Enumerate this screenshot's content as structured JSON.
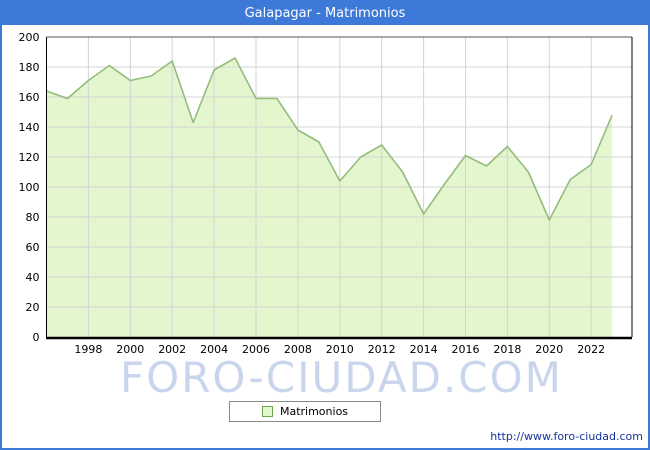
{
  "window": {
    "title": "Galapagar - Matrimonios"
  },
  "chart_data": {
    "type": "area",
    "title": "Galapagar - Matrimonios",
    "series_name": "Matrimonios",
    "x": [
      1996,
      1997,
      1998,
      1999,
      2000,
      2001,
      2002,
      2003,
      2004,
      2005,
      2006,
      2007,
      2008,
      2009,
      2010,
      2011,
      2012,
      2013,
      2014,
      2015,
      2016,
      2017,
      2018,
      2019,
      2020,
      2021,
      2022,
      2023
    ],
    "values": [
      164,
      159,
      171,
      181,
      171,
      174,
      184,
      143,
      178,
      186,
      159,
      159,
      138,
      130,
      104,
      120,
      128,
      110,
      82,
      102,
      121,
      114,
      127,
      110,
      78,
      105,
      115,
      148
    ],
    "ylim": [
      0,
      200
    ],
    "y_ticks": [
      0,
      20,
      40,
      60,
      80,
      100,
      120,
      140,
      160,
      180,
      200
    ],
    "x_tick_years": [
      1998,
      2000,
      2002,
      2004,
      2006,
      2008,
      2010,
      2012,
      2014,
      2016,
      2018,
      2020,
      2022
    ],
    "grid": true,
    "legend_position": "bottom",
    "colors": {
      "titlebar": "#3d79d8",
      "area_fill": "#e3f6cd",
      "line": "#94bd7c",
      "grid": "#d4d4d4",
      "axis": "#000000",
      "tick_text": "#000000"
    }
  },
  "legend": {
    "label": "Matrimonios"
  },
  "watermark": {
    "text": "FORO-CIUDAD.COM"
  },
  "footer": {
    "url_text": "http://www.foro-ciudad.com"
  }
}
